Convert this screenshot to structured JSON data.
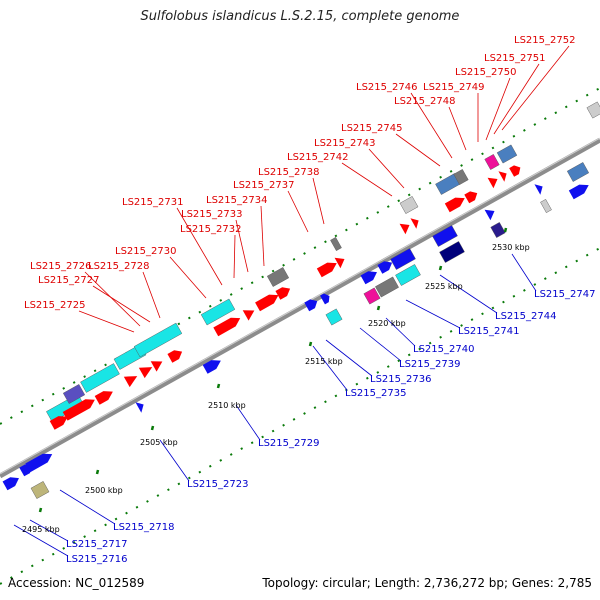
{
  "title": "Sulfolobus islandicus L.S.2.15, complete genome",
  "footer": {
    "accession": "Accession: NC_012589",
    "summary": "Topology: circular; Length: 2,736,272 bp; Genes: 2,785"
  },
  "colors": {
    "backbone": "#8c8c8c",
    "label_top": "#dd0000",
    "label_bottom": "#0000cc",
    "tick_major": "#0a7a0a",
    "red": "#ff0000",
    "blue": "#1010ee",
    "cyan": "#19e5e5",
    "steelblue": "#4a7fbf",
    "gray": "#777777",
    "lightgray": "#cccccc",
    "magenta": "#ee1099",
    "navy": "#00007a",
    "slateblue": "#5a4fc0",
    "khaki": "#bdb57a",
    "darkblue": "#2a1c8c"
  },
  "ticks": [
    "2495 kbp",
    "2500 kbp",
    "2505 kbp",
    "2510 kbp",
    "2515 kbp",
    "2520 kbp",
    "2525 kbp",
    "2530 kbp"
  ],
  "top_labels": [
    "LS215_2725",
    "LS215_2726",
    "LS215_2727",
    "LS215_2728",
    "LS215_2730",
    "LS215_2731",
    "LS215_2732",
    "LS215_2733",
    "LS215_2734",
    "LS215_2737",
    "LS215_2738",
    "LS215_2742",
    "LS215_2743",
    "LS215_2745",
    "LS215_2746",
    "LS215_2748",
    "LS215_2749",
    "LS215_2750",
    "LS215_2751",
    "LS215_2752"
  ],
  "bottom_labels": [
    "LS215_2716",
    "LS215_2717",
    "LS215_2718",
    "LS215_2723",
    "LS215_2729",
    "LS215_2735",
    "LS215_2736",
    "LS215_2739",
    "LS215_2740",
    "LS215_2741",
    "LS215_2744",
    "LS215_2747"
  ]
}
